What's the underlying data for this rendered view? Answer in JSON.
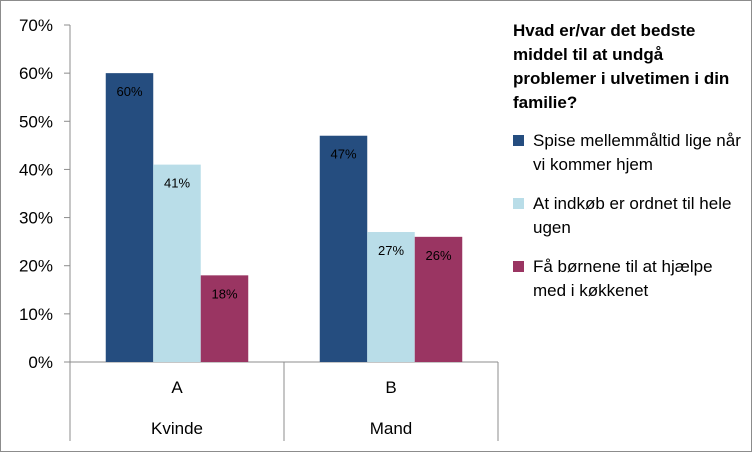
{
  "chart_data": {
    "type": "bar",
    "title": "Hvad er/var det bedste middel til at undgå problemer i ulvetimen i din familie?",
    "categories": [
      "A",
      "B"
    ],
    "category_groups": [
      "Kvinde",
      "Mand"
    ],
    "series": [
      {
        "name": "Spise mellemmåltid lige når vi kommer hjem",
        "values": [
          60,
          47
        ],
        "color": "#254d7f",
        "labels": [
          "60%",
          "47%"
        ]
      },
      {
        "name": "At indkøb er ordnet til hele ugen",
        "values": [
          41,
          27
        ],
        "color": "#b9dde8",
        "labels": [
          "41%",
          "27%"
        ]
      },
      {
        "name": "Få børnene til at hjælpe med i køkkenet",
        "values": [
          18,
          26
        ],
        "color": "#9a3562",
        "labels": [
          "18%",
          "26%"
        ]
      }
    ],
    "ylim": [
      0,
      70
    ],
    "yticks": [
      0,
      10,
      20,
      30,
      40,
      50,
      60,
      70
    ],
    "ytick_labels": [
      "0%",
      "10%",
      "20%",
      "30%",
      "40%",
      "50%",
      "60%",
      "70%"
    ],
    "grid": false,
    "legend_position": "right"
  }
}
